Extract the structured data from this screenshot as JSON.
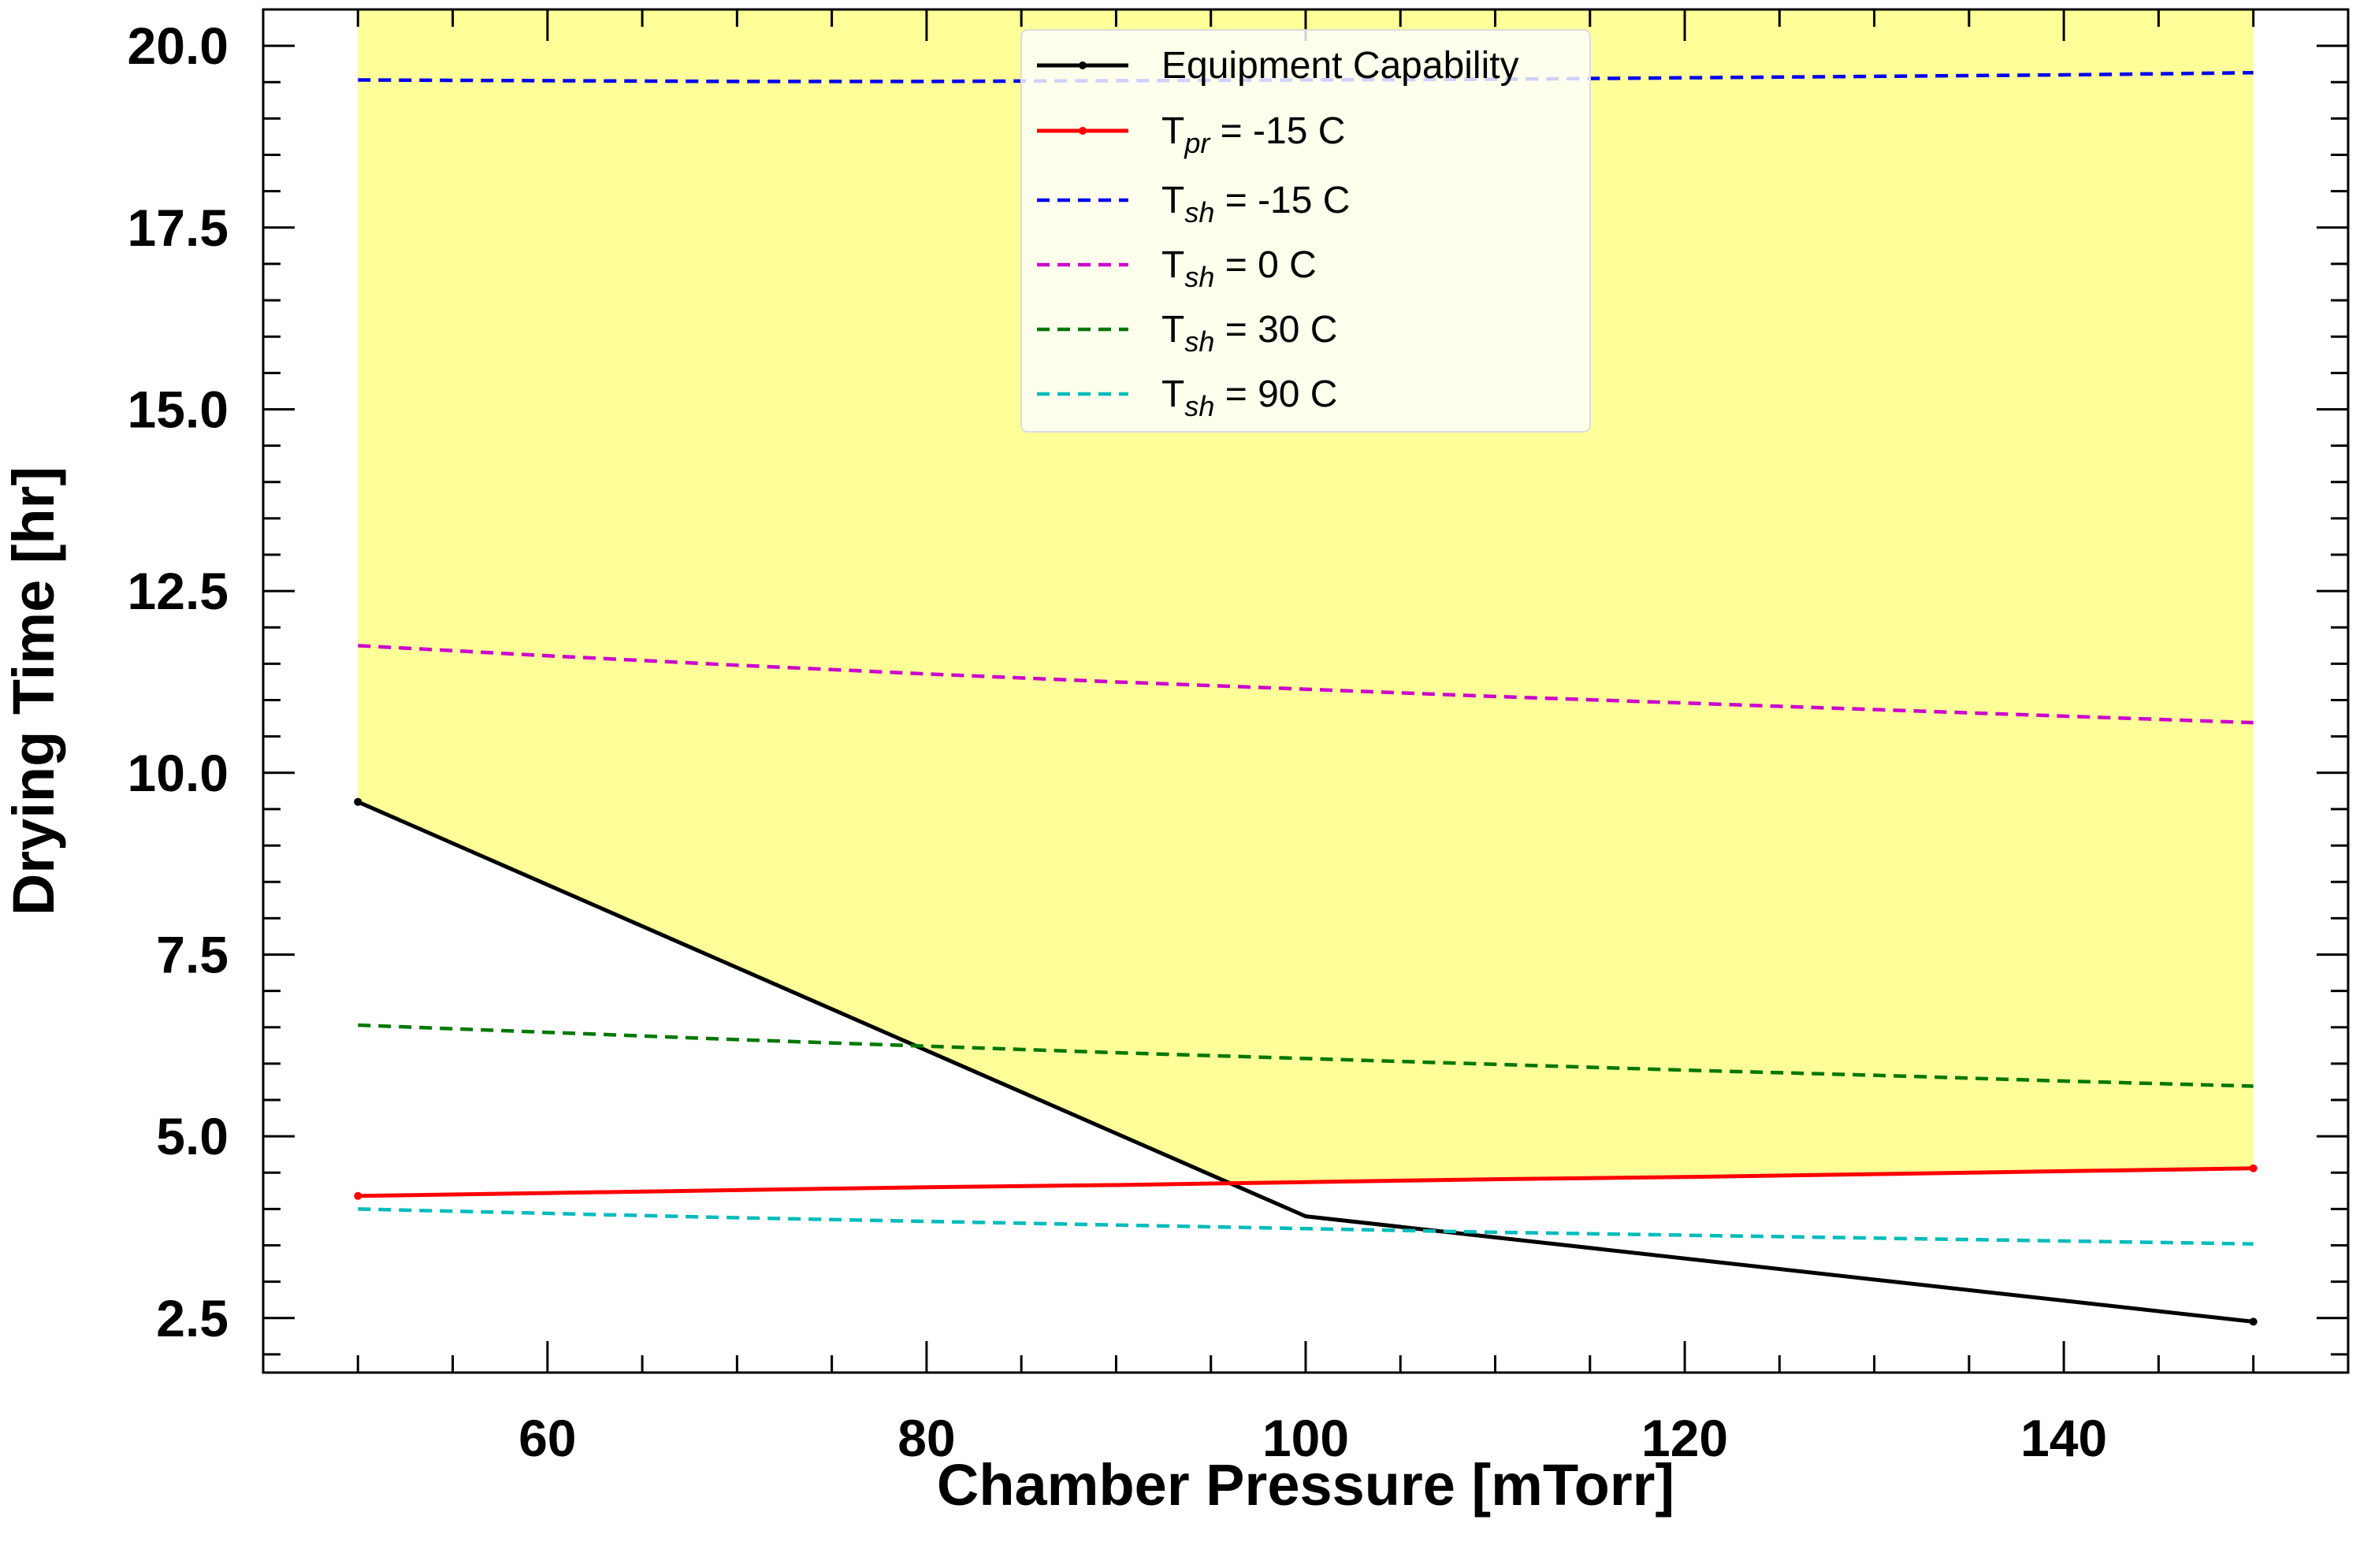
{
  "chart_data": {
    "type": "line",
    "xlabel": "Chamber Pressure [mTorr]",
    "ylabel": "Drying Time [hr]",
    "xlim": [
      45,
      155
    ],
    "ylim": [
      1.75,
      20.5
    ],
    "xticks": [
      60,
      80,
      100,
      120,
      140
    ],
    "yticks": [
      2.5,
      5.0,
      7.5,
      10.0,
      12.5,
      15.0,
      17.5,
      20.0
    ],
    "xtick_labels": [
      "60",
      "80",
      "100",
      "120",
      "140"
    ],
    "ytick_labels": [
      "2.5",
      "5.0",
      "7.5",
      "10.0",
      "12.5",
      "15.0",
      "17.5",
      "20.0"
    ],
    "grid": false,
    "legend_position": "top-center",
    "shaded_region": {
      "color": "#ffff99",
      "x": [
        50,
        96.2,
        150
      ],
      "lower": [
        9.6,
        4.35,
        4.55
      ],
      "upper": [
        20.5,
        20.5,
        20.5
      ]
    },
    "series": [
      {
        "label_main": "Equipment Capability",
        "label_sub": "",
        "label_rest": "",
        "color": "#000000",
        "dash": "solid",
        "markers": true,
        "x": [
          50,
          100,
          150
        ],
        "y": [
          9.6,
          3.9,
          2.45
        ]
      },
      {
        "label_main": "T",
        "label_sub": "pr",
        "label_rest": " = -15 C",
        "color": "#ff0000",
        "dash": "solid",
        "markers": true,
        "x": [
          50,
          60,
          70,
          80,
          90,
          100,
          110,
          120,
          130,
          140,
          150
        ],
        "y": [
          4.18,
          4.22,
          4.26,
          4.3,
          4.33,
          4.37,
          4.41,
          4.44,
          4.48,
          4.52,
          4.56
        ]
      },
      {
        "label_main": "T",
        "label_sub": "sh",
        "label_rest": " = -15 C",
        "color": "#0000ee",
        "dash": "dashed",
        "markers": false,
        "x": [
          50,
          60,
          70,
          80,
          90,
          100,
          110,
          120,
          130,
          140,
          150
        ],
        "y": [
          19.53,
          19.52,
          19.51,
          19.51,
          19.52,
          19.53,
          19.54,
          19.56,
          19.58,
          19.6,
          19.63
        ]
      },
      {
        "label_main": "T",
        "label_sub": "sh",
        "label_rest": " = 0 C",
        "color": "#cc00cc",
        "dash": "dashed",
        "markers": false,
        "x": [
          50,
          60,
          70,
          80,
          90,
          100,
          110,
          120,
          130,
          140,
          150
        ],
        "y": [
          11.75,
          11.61,
          11.48,
          11.36,
          11.25,
          11.15,
          11.05,
          10.96,
          10.87,
          10.78,
          10.69
        ]
      },
      {
        "label_main": "T",
        "label_sub": "sh",
        "label_rest": " = 30 C",
        "color": "#007700",
        "dash": "dashed",
        "markers": false,
        "x": [
          50,
          60,
          70,
          80,
          90,
          100,
          110,
          120,
          130,
          140,
          150
        ],
        "y": [
          6.53,
          6.43,
          6.33,
          6.24,
          6.15,
          6.07,
          5.99,
          5.91,
          5.84,
          5.76,
          5.69
        ]
      },
      {
        "label_main": "T",
        "label_sub": "sh",
        "label_rest": " = 90 C",
        "color": "#00bbbb",
        "dash": "dashed",
        "markers": false,
        "x": [
          50,
          60,
          70,
          80,
          90,
          100,
          110,
          120,
          130,
          140,
          150
        ],
        "y": [
          4.0,
          3.94,
          3.88,
          3.83,
          3.78,
          3.73,
          3.68,
          3.64,
          3.6,
          3.56,
          3.52
        ]
      }
    ]
  }
}
